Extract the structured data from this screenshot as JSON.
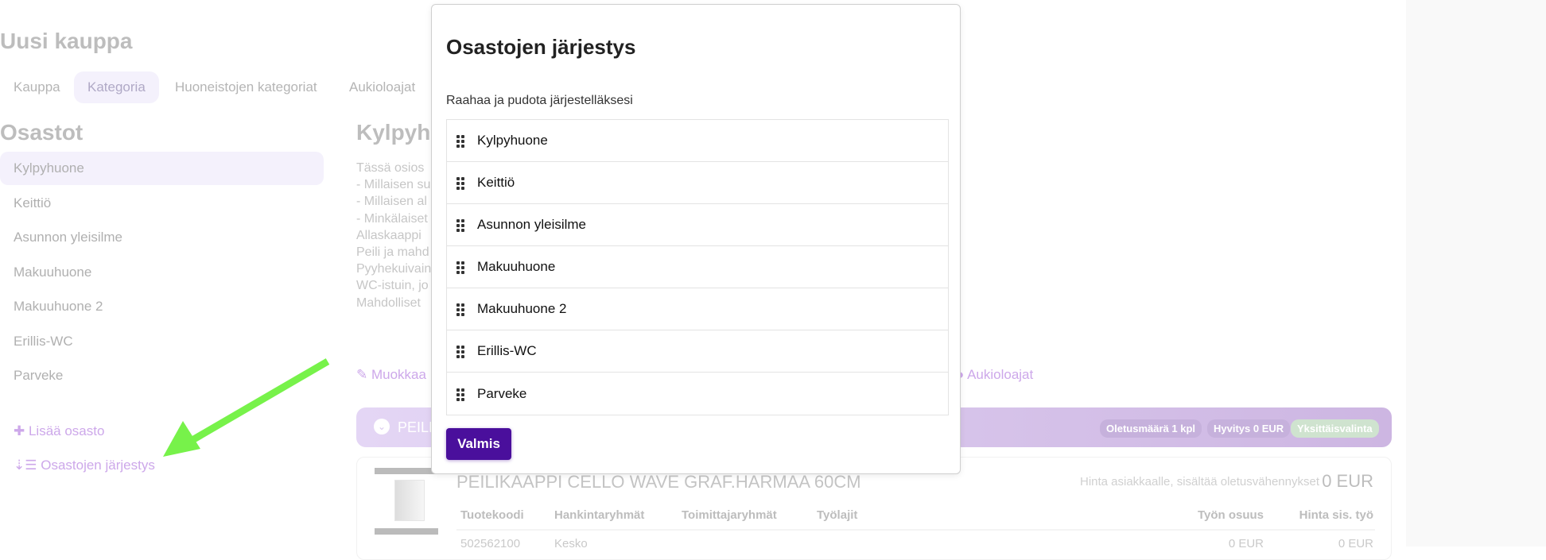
{
  "page": {
    "title": "Uusi kauppa"
  },
  "tabs": [
    {
      "label": "Kauppa"
    },
    {
      "label": "Kategoria",
      "active": true
    },
    {
      "label": "Huoneistojen kategoriat"
    },
    {
      "label": "Aukioloajat"
    }
  ],
  "sidebar": {
    "heading": "Osastot",
    "items": [
      "Kylpyhuone",
      "Keittiö",
      "Asunnon yleisilme",
      "Makuuhuone",
      "Makuuhuone 2",
      "Erillis-WC",
      "Parveke"
    ],
    "add_label": "Lisää osasto",
    "order_label": "Osastojen järjestys"
  },
  "main": {
    "heading": "Kylpyhu",
    "description": [
      "Tässä osios",
      "- Millaisen su",
      "- Millaisen al",
      "- Minkälaiset",
      "Allaskaappi",
      "Peili ja mahd",
      "Pyyhekuivain",
      "WC-istuin, jo",
      "Mahdolliset"
    ],
    "edit_label": "Muokkaa",
    "hours_label": "Aukioloajat",
    "band": {
      "title": "PEILI",
      "badges": [
        "Oletusmäärä 1 kpl",
        "Hyvitys 0 EUR",
        "Yksittäisvalinta"
      ]
    },
    "product": {
      "name": "PEILIKAAPPI CELLO WAVE GRAF.HARMAA 60CM",
      "price_label": "Hinta asiakkaalle, sisältää oletusvähennykset",
      "price": "0 EUR",
      "headers": [
        "Tuotekoodi",
        "Hankintaryhmät",
        "Toimittajaryhmät",
        "Työlajit",
        "Työn osuus",
        "Hinta sis. työ"
      ],
      "row": [
        "502562100",
        "Kesko",
        "",
        "",
        "0 EUR",
        "0 EUR"
      ]
    }
  },
  "modal": {
    "title": "Osastojen järjestys",
    "subtitle": "Raahaa ja pudota järjestelläksesi",
    "items": [
      "Kylpyhuone",
      "Keittiö",
      "Asunnon yleisilme",
      "Makuuhuone",
      "Makuuhuone 2",
      "Erillis-WC",
      "Parveke"
    ],
    "done_label": "Valmis"
  },
  "colors": {
    "accent": "#4a0f9c",
    "annotation_arrow": "#77f24a"
  }
}
